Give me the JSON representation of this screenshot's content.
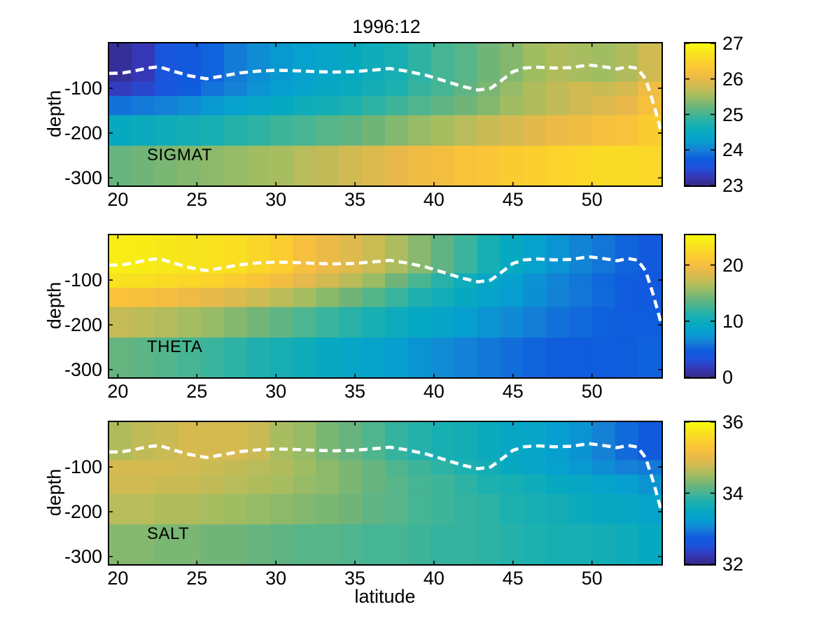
{
  "figure": {
    "title": "1996:12",
    "xlabel": "latitude",
    "ylabel": "depth",
    "background": "#ffffff"
  },
  "colormap": {
    "name": "parula",
    "stops": [
      "#352a87",
      "#3637b7",
      "#1f52dc",
      "#0f5cdd",
      "#1481d6",
      "#069fd0",
      "#07a9c1",
      "#1cb0af",
      "#46b594",
      "#71b478",
      "#a0bd62",
      "#c9bb54",
      "#e8b94a",
      "#fac23a",
      "#fbd32b",
      "#f7e51b",
      "#f9fb0e"
    ]
  },
  "axes": {
    "lat_min": 19.45,
    "lat_max": 54.4,
    "x_ticks": [
      20,
      25,
      30,
      35,
      40,
      45,
      50
    ],
    "depth_ticks": [
      -100,
      -200,
      -300
    ],
    "depth_max": 317,
    "row_depth_edges": [
      0,
      86,
      118,
      161,
      229,
      317
    ],
    "n_cols": 24
  },
  "mixed_layer_line": {
    "color": "#ffffff",
    "style": "dashed",
    "points": [
      [
        19.45,
        -67
      ],
      [
        20.3,
        -66
      ],
      [
        21.1,
        -61
      ],
      [
        21.9,
        -55
      ],
      [
        22.6,
        -52
      ],
      [
        23.5,
        -62
      ],
      [
        24.5,
        -72
      ],
      [
        25.6,
        -79
      ],
      [
        26.6,
        -73
      ],
      [
        27.7,
        -66
      ],
      [
        28.8,
        -62
      ],
      [
        30.0,
        -60
      ],
      [
        31.3,
        -61
      ],
      [
        32.5,
        -63
      ],
      [
        33.7,
        -64
      ],
      [
        34.9,
        -63
      ],
      [
        36.0,
        -60
      ],
      [
        37.2,
        -56
      ],
      [
        38.3,
        -62
      ],
      [
        39.5,
        -71
      ],
      [
        40.7,
        -84
      ],
      [
        41.8,
        -96
      ],
      [
        42.8,
        -104
      ],
      [
        43.6,
        -100
      ],
      [
        44.3,
        -82
      ],
      [
        45.0,
        -63
      ],
      [
        45.7,
        -55
      ],
      [
        46.6,
        -53
      ],
      [
        47.6,
        -55
      ],
      [
        48.7,
        -54
      ],
      [
        49.8,
        -48
      ],
      [
        50.7,
        -52
      ],
      [
        51.6,
        -57
      ],
      [
        52.3,
        -52
      ],
      [
        52.9,
        -56
      ],
      [
        53.4,
        -80
      ],
      [
        53.9,
        -135
      ],
      [
        54.4,
        -200
      ]
    ]
  },
  "chart_data": [
    {
      "type": "heatmap",
      "label": "SIGMAT",
      "clim": [
        23,
        27
      ],
      "colorbar_ticks": [
        27,
        26,
        25,
        24,
        23
      ],
      "values": [
        [
          23.1,
          23.25,
          23.6,
          23.7,
          23.8,
          23.95,
          24.1,
          24.2,
          24.3,
          24.4,
          24.5,
          24.6,
          24.7,
          24.85,
          25.0,
          25.1,
          25.25,
          25.35,
          25.5,
          25.6,
          25.55,
          25.5,
          25.6,
          25.8
        ],
        [
          23.3,
          23.4,
          23.6,
          23.75,
          23.9,
          24.0,
          24.15,
          24.25,
          24.35,
          24.45,
          24.55,
          24.65,
          24.75,
          24.9,
          25.0,
          25.15,
          25.3,
          25.45,
          25.6,
          25.7,
          25.8,
          25.75,
          25.85,
          26.1
        ],
        [
          23.9,
          23.95,
          24.0,
          24.1,
          24.2,
          24.3,
          24.4,
          24.5,
          24.6,
          24.65,
          24.75,
          24.85,
          24.95,
          25.05,
          25.15,
          25.25,
          25.35,
          25.5,
          25.6,
          25.7,
          25.8,
          25.9,
          26.0,
          26.2
        ],
        [
          24.5,
          24.55,
          24.6,
          24.65,
          24.7,
          24.8,
          24.85,
          24.95,
          25.0,
          25.1,
          25.15,
          25.25,
          25.35,
          25.45,
          25.55,
          25.65,
          25.75,
          25.85,
          25.95,
          26.05,
          26.1,
          26.2,
          26.25,
          26.4
        ],
        [
          25.2,
          25.25,
          25.3,
          25.35,
          25.4,
          25.45,
          25.5,
          25.55,
          25.65,
          25.7,
          25.8,
          25.9,
          26.0,
          26.1,
          26.15,
          26.25,
          26.3,
          26.4,
          26.45,
          26.5,
          26.55,
          26.6,
          26.6,
          26.55
        ]
      ]
    },
    {
      "type": "heatmap",
      "label": "THETA",
      "clim": [
        0,
        25.3
      ],
      "colorbar_ticks": [
        20,
        10,
        0
      ],
      "values": [
        [
          24.3,
          24.2,
          23.9,
          23.6,
          23.4,
          23.1,
          22.4,
          21.6,
          20.2,
          19.3,
          18.5,
          17.5,
          16.3,
          15.0,
          13.6,
          12.2,
          10.8,
          9.5,
          8.4,
          7.4,
          6.5,
          5.8,
          5.1,
          4.3
        ],
        [
          23.4,
          23.2,
          22.8,
          22.4,
          22.0,
          21.4,
          20.7,
          19.8,
          18.8,
          17.8,
          16.8,
          15.6,
          14.2,
          12.8,
          11.5,
          10.1,
          9.0,
          8.0,
          7.2,
          6.5,
          5.8,
          5.2,
          4.7,
          4.3
        ],
        [
          20.6,
          20.3,
          19.9,
          19.4,
          18.9,
          18.3,
          17.6,
          16.8,
          16.0,
          15.1,
          14.2,
          13.2,
          12.2,
          11.2,
          10.3,
          9.4,
          8.5,
          7.8,
          7.1,
          6.4,
          5.9,
          5.3,
          4.8,
          4.5
        ],
        [
          17.2,
          16.9,
          16.5,
          16.0,
          15.5,
          14.9,
          14.3,
          13.6,
          12.9,
          12.2,
          11.5,
          10.8,
          10.0,
          9.3,
          8.7,
          8.0,
          7.4,
          6.8,
          6.2,
          5.7,
          5.3,
          4.9,
          4.7,
          4.8
        ],
        [
          13.8,
          13.5,
          13.1,
          12.7,
          12.2,
          11.7,
          11.2,
          10.7,
          10.1,
          9.6,
          9.0,
          8.5,
          7.9,
          7.4,
          6.9,
          6.4,
          5.9,
          5.5,
          5.1,
          4.8,
          4.7,
          4.7,
          4.8,
          5.0
        ]
      ]
    },
    {
      "type": "heatmap",
      "label": "SALT",
      "clim": [
        32,
        36
      ],
      "colorbar_ticks": [
        36,
        34,
        32
      ],
      "values": [
        [
          34.6,
          34.7,
          34.75,
          34.85,
          34.85,
          34.85,
          34.75,
          34.55,
          34.45,
          34.3,
          34.2,
          34.05,
          33.9,
          33.8,
          33.7,
          33.65,
          33.55,
          33.45,
          33.4,
          33.25,
          33.15,
          33.0,
          32.85,
          32.7
        ],
        [
          34.85,
          34.85,
          34.85,
          34.8,
          34.75,
          34.7,
          34.65,
          34.6,
          34.5,
          34.4,
          34.3,
          34.2,
          34.05,
          33.95,
          33.85,
          33.75,
          33.65,
          33.5,
          33.4,
          33.3,
          33.2,
          33.1,
          33.0,
          32.95
        ],
        [
          34.8,
          34.8,
          34.75,
          34.75,
          34.7,
          34.65,
          34.6,
          34.55,
          34.45,
          34.4,
          34.3,
          34.2,
          34.1,
          34.0,
          33.95,
          33.85,
          33.75,
          33.7,
          33.6,
          33.5,
          33.45,
          33.35,
          33.25,
          33.15
        ],
        [
          34.65,
          34.65,
          34.6,
          34.6,
          34.55,
          34.5,
          34.45,
          34.4,
          34.35,
          34.3,
          34.25,
          34.15,
          34.1,
          34.0,
          33.95,
          33.9,
          33.85,
          33.75,
          33.7,
          33.65,
          33.55,
          33.5,
          33.45,
          33.35
        ],
        [
          34.35,
          34.35,
          34.3,
          34.3,
          34.25,
          34.25,
          34.2,
          34.15,
          34.1,
          34.1,
          34.05,
          34.0,
          34.0,
          33.95,
          33.9,
          33.9,
          33.85,
          33.8,
          33.75,
          33.7,
          33.7,
          33.65,
          33.6,
          33.5
        ]
      ]
    }
  ]
}
